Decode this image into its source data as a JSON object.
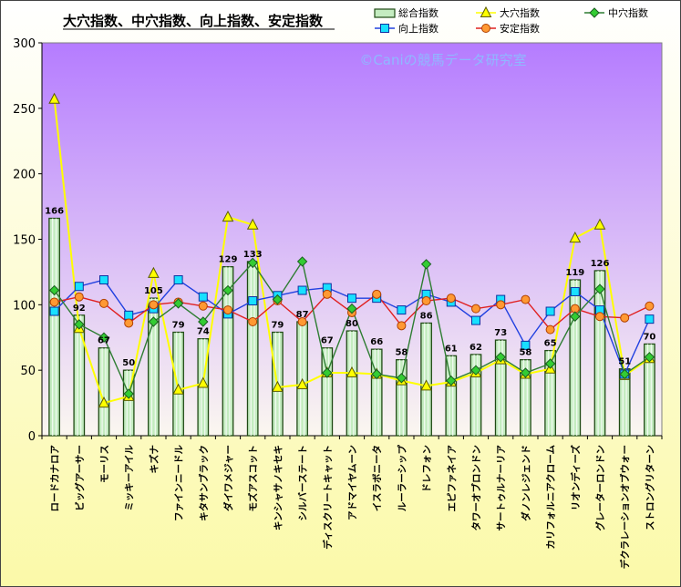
{
  "chart_data": {
    "type": "bar",
    "title": "大穴指数、中穴指数、向上指数、安定指数",
    "watermark": "©Caniの競馬データ研究室",
    "ylim": [
      0,
      300
    ],
    "yticks": [
      0,
      50,
      100,
      150,
      200,
      250,
      300
    ],
    "legend_position": "top-right",
    "grid": false,
    "colors": {
      "plot_top": "#b57cff",
      "plot_bottom": "#fbf7f0",
      "bg_top": "#ffffff",
      "bg_bottom": "#fbf9a8",
      "bar_fill": "#c4ecc0",
      "bar_edge": "#1f4a14",
      "total_label": "#000000"
    },
    "categories": [
      "ロードカナロア",
      "ビッグアーサー",
      "モーリス",
      "ミッキーアイル",
      "キズナ",
      "ファインニードル",
      "キタサンブラック",
      "ダイワメジャー",
      "モズアスコット",
      "キンシャサノキセキ",
      "シルバーステート",
      "ディスクリートキャット",
      "アドマイヤムーン",
      "イスラボニータ",
      "ルーラーシップ",
      "ドレフォン",
      "エピファネイア",
      "タワーオブロンドン",
      "サートゥルナーリア",
      "ダノンレジェンド",
      "カリフォルニアクローム",
      "リオンディーズ",
      "グレーターロンドン",
      "デクラレーションオブウォー",
      "ストロングリターン"
    ],
    "series": [
      {
        "name": "総合指数",
        "kind": "bar",
        "values": [
          166,
          92,
          67,
          50,
          105,
          79,
          74,
          129,
          133,
          79,
          87,
          67,
          80,
          66,
          58,
          86,
          61,
          62,
          73,
          58,
          65,
          119,
          126,
          51,
          70
        ]
      },
      {
        "name": "大穴指数",
        "kind": "line",
        "color": "#ffff00",
        "marker": "triangle",
        "marker_fill": "#ffff00",
        "marker_edge": "#5a5a00",
        "values": [
          257,
          82,
          25,
          30,
          124,
          35,
          40,
          167,
          161,
          37,
          39,
          48,
          48,
          47,
          42,
          38,
          41,
          48,
          58,
          47,
          51,
          151,
          161,
          46,
          59
        ]
      },
      {
        "name": "中穴指数",
        "kind": "line",
        "color": "#2e7d32",
        "marker": "diamond",
        "marker_fill": "#33cc33",
        "marker_edge": "#1b5e20",
        "values": [
          111,
          85,
          75,
          32,
          87,
          101,
          87,
          111,
          132,
          104,
          133,
          48,
          97,
          47,
          44,
          131,
          42,
          50,
          60,
          48,
          55,
          91,
          112,
          47,
          60
        ]
      },
      {
        "name": "向上指数",
        "kind": "line",
        "color": "#2040e0",
        "marker": "square",
        "marker_fill": "#18e0ff",
        "marker_edge": "#1030a0",
        "values": [
          95,
          114,
          119,
          92,
          97,
          119,
          106,
          93,
          103,
          107,
          111,
          113,
          105,
          105,
          96,
          108,
          102,
          88,
          104,
          69,
          95,
          110,
          96,
          47,
          89
        ]
      },
      {
        "name": "安定指数",
        "kind": "line",
        "color": "#e02020",
        "marker": "circle",
        "marker_fill": "#ff9933",
        "marker_edge": "#b04000",
        "values": [
          102,
          106,
          101,
          86,
          100,
          102,
          99,
          96,
          87,
          103,
          87,
          108,
          94,
          108,
          84,
          103,
          105,
          97,
          100,
          104,
          81,
          97,
          91,
          90,
          99
        ]
      }
    ]
  }
}
